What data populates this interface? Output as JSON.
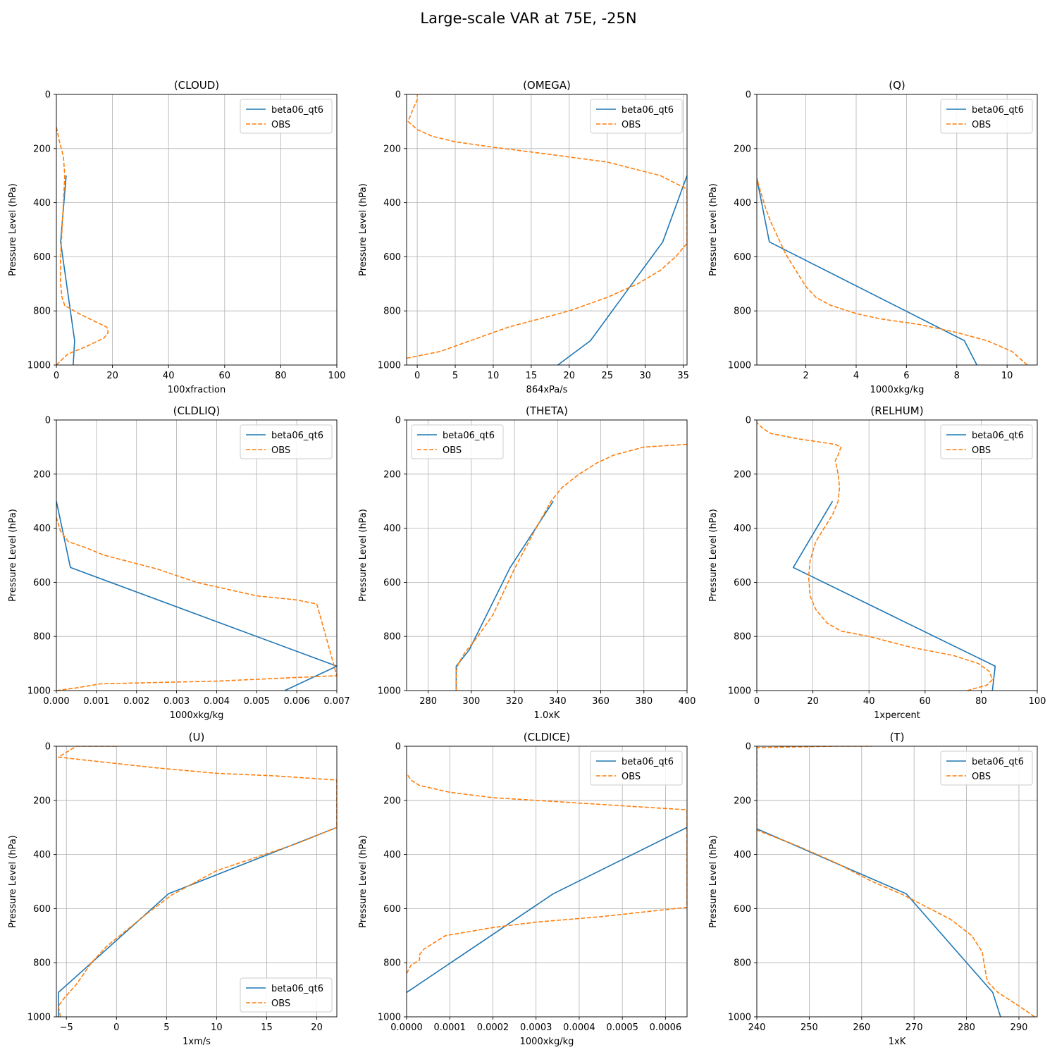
{
  "figure": {
    "title": "Large-scale VAR at 75E, -25N"
  },
  "colors": {
    "model": "#1f77b4",
    "obs": "#ff7f0e",
    "grid": "#b0b0b0"
  },
  "chart_data": [
    {
      "type": "line",
      "title": "(CLOUD)",
      "xlabel": "100xfraction",
      "ylabel": "Pressure Level (hPa)",
      "xlim": [
        0,
        100
      ],
      "ylim": [
        1000,
        0
      ],
      "xticks": [
        0,
        20,
        40,
        60,
        80,
        100
      ],
      "xticklabels": [
        "0",
        "20",
        "40",
        "60",
        "80",
        "100"
      ],
      "yticks": [
        0,
        200,
        400,
        600,
        800,
        1000
      ],
      "yticklabels": [
        "0",
        "200",
        "400",
        "600",
        "800",
        "1000"
      ],
      "grid": true,
      "legend": "upper right",
      "series": [
        {
          "name": "beta06_qt6",
          "style": "solid",
          "x": [
            6,
            6.5,
            1.5,
            3.5
          ],
          "y": [
            1000,
            910,
            545,
            300
          ]
        },
        {
          "name": "OBS",
          "style": "dashed",
          "x": [
            0,
            4,
            11,
            17,
            18.5,
            18,
            14,
            8,
            3,
            2,
            1.5,
            1.5,
            2,
            2.5,
            3,
            2.5,
            1,
            0
          ],
          "y": [
            1000,
            960,
            930,
            900,
            880,
            860,
            840,
            810,
            780,
            750,
            700,
            600,
            500,
            400,
            300,
            230,
            170,
            120
          ]
        }
      ]
    },
    {
      "type": "line",
      "title": "(OMEGA)",
      "xlabel": "864xPa/s",
      "ylabel": "Pressure Level (hPa)",
      "xlim": [
        -1.4,
        35.5
      ],
      "ylim": [
        1000,
        0
      ],
      "xticks": [
        0,
        5,
        10,
        15,
        20,
        25,
        30,
        35
      ],
      "xticklabels": [
        "0",
        "5",
        "10",
        "15",
        "20",
        "25",
        "30",
        "35"
      ],
      "yticks": [
        0,
        200,
        400,
        600,
        800,
        1000
      ],
      "yticklabels": [
        "0",
        "200",
        "400",
        "600",
        "800",
        "1000"
      ],
      "grid": true,
      "legend": "upper right",
      "series": [
        {
          "name": "beta06_qt6",
          "style": "solid",
          "x": [
            18.5,
            22.8,
            32.3,
            35.5
          ],
          "y": [
            1000,
            910,
            545,
            300
          ]
        },
        {
          "name": "OBS",
          "style": "dashed",
          "x": [
            -1.4,
            3,
            8,
            12,
            16,
            20,
            25,
            29,
            32,
            34,
            35.5,
            35.5,
            35.5,
            32,
            25,
            17,
            10,
            5,
            2,
            0,
            -1.2,
            -0.5,
            0,
            0
          ],
          "y": [
            975,
            950,
            900,
            860,
            830,
            800,
            750,
            700,
            650,
            600,
            550,
            450,
            350,
            300,
            250,
            220,
            195,
            175,
            155,
            130,
            100,
            50,
            20,
            0
          ]
        }
      ]
    },
    {
      "type": "line",
      "title": "(Q)",
      "xlabel": "1000xkg/kg",
      "ylabel": "Pressure Level (hPa)",
      "xlim": [
        0.05,
        11.2
      ],
      "ylim": [
        1000,
        0
      ],
      "xticks": [
        2,
        4,
        6,
        8,
        10
      ],
      "xticklabels": [
        "2",
        "4",
        "6",
        "8",
        "10"
      ],
      "yticks": [
        0,
        200,
        400,
        600,
        800,
        1000
      ],
      "yticklabels": [
        "0",
        "200",
        "400",
        "600",
        "800",
        "1000"
      ],
      "grid": true,
      "legend": "upper right",
      "series": [
        {
          "name": "beta06_qt6",
          "style": "solid",
          "x": [
            8.8,
            8.3,
            0.55,
            0.05
          ],
          "y": [
            1000,
            910,
            545,
            310
          ]
        },
        {
          "name": "OBS",
          "style": "dashed",
          "x": [
            10.8,
            10.2,
            9.2,
            8,
            6.5,
            5,
            4,
            3,
            2.4,
            2,
            1.6,
            1.2,
            0.9,
            0.6,
            0.4,
            0.2,
            0.05
          ],
          "y": [
            1000,
            950,
            910,
            880,
            850,
            830,
            810,
            780,
            750,
            710,
            650,
            590,
            530,
            470,
            420,
            360,
            310
          ]
        }
      ]
    },
    {
      "type": "line",
      "title": "(CLDLIQ)",
      "xlabel": "1000xkg/kg",
      "ylabel": "Pressure Level (hPa)",
      "xlim": [
        0,
        0.007
      ],
      "ylim": [
        1000,
        0
      ],
      "xticks": [
        0,
        0.001,
        0.002,
        0.003,
        0.004,
        0.005,
        0.006,
        0.007
      ],
      "xticklabels": [
        "0.000",
        "0.001",
        "0.002",
        "0.003",
        "0.004",
        "0.005",
        "0.006",
        "0.007"
      ],
      "yticks": [
        0,
        200,
        400,
        600,
        800,
        1000
      ],
      "yticklabels": [
        "0",
        "200",
        "400",
        "600",
        "800",
        "1000"
      ],
      "grid": true,
      "legend": "upper right",
      "series": [
        {
          "name": "beta06_qt6",
          "style": "solid",
          "x": [
            0.0057,
            0.007,
            0.00035,
            0
          ],
          "y": [
            1000,
            910,
            545,
            300
          ]
        },
        {
          "name": "OBS",
          "style": "dashed",
          "x": [
            0,
            0.0005,
            0.0011,
            0.004,
            0.0055,
            0.007,
            0.0065,
            0.006,
            0.005,
            0.0035,
            0.0025,
            0.0012,
            0.0007,
            0.0003,
            0.0001,
            0
          ],
          "y": [
            1000,
            990,
            975,
            965,
            955,
            945,
            680,
            665,
            650,
            600,
            550,
            500,
            470,
            450,
            410,
            360
          ]
        }
      ]
    },
    {
      "type": "line",
      "title": "(THETA)",
      "xlabel": "1.0xK",
      "ylabel": "Pressure Level (hPa)",
      "xlim": [
        270,
        400
      ],
      "ylim": [
        1000,
        0
      ],
      "xticks": [
        280,
        300,
        320,
        340,
        360,
        380,
        400
      ],
      "xticklabels": [
        "280",
        "300",
        "320",
        "340",
        "360",
        "380",
        "400"
      ],
      "yticks": [
        0,
        200,
        400,
        600,
        800,
        1000
      ],
      "yticklabels": [
        "0",
        "200",
        "400",
        "600",
        "800",
        "1000"
      ],
      "grid": true,
      "legend": "upper left",
      "series": [
        {
          "name": "beta06_qt6",
          "style": "solid",
          "x": [
            293,
            293,
            299,
            318,
            338
          ],
          "y": [
            1000,
            910,
            850,
            545,
            300
          ]
        },
        {
          "name": "OBS",
          "style": "dashed",
          "x": [
            293,
            293,
            294,
            297,
            303,
            310,
            320,
            330,
            337,
            342,
            350,
            358,
            366,
            380,
            400
          ],
          "y": [
            1000,
            930,
            900,
            860,
            800,
            720,
            550,
            400,
            300,
            250,
            200,
            160,
            130,
            100,
            90
          ]
        }
      ]
    },
    {
      "type": "line",
      "title": "(RELHUM)",
      "xlabel": "1xpercent",
      "ylabel": "Pressure Level (hPa)",
      "xlim": [
        0,
        100
      ],
      "ylim": [
        1000,
        0
      ],
      "xticks": [
        0,
        20,
        40,
        60,
        80,
        100
      ],
      "xticklabels": [
        "0",
        "20",
        "40",
        "60",
        "80",
        "100"
      ],
      "yticks": [
        0,
        200,
        400,
        600,
        800,
        1000
      ],
      "yticklabels": [
        "0",
        "200",
        "400",
        "600",
        "800",
        "1000"
      ],
      "grid": true,
      "legend": "upper right",
      "series": [
        {
          "name": "beta06_qt6",
          "style": "solid",
          "x": [
            84,
            85,
            13,
            27
          ],
          "y": [
            1000,
            910,
            545,
            300
          ]
        },
        {
          "name": "OBS",
          "style": "dashed",
          "x": [
            75,
            82,
            84,
            83,
            79,
            70,
            55,
            40,
            30,
            25,
            21,
            19,
            18.5,
            19,
            21,
            24,
            27,
            29,
            29.5,
            29,
            28,
            29,
            30,
            28,
            15,
            5,
            2,
            0
          ],
          "y": [
            1000,
            980,
            960,
            930,
            900,
            870,
            840,
            800,
            780,
            750,
            700,
            650,
            580,
            520,
            450,
            400,
            350,
            300,
            250,
            200,
            150,
            130,
            100,
            90,
            70,
            50,
            30,
            10
          ]
        }
      ]
    },
    {
      "type": "line",
      "title": "(U)",
      "xlabel": "1xm/s",
      "ylabel": "Pressure Level (hPa)",
      "xlim": [
        -6,
        22
      ],
      "ylim": [
        1000,
        0
      ],
      "xticks": [
        -5,
        0,
        5,
        10,
        15,
        20
      ],
      "xticklabels": [
        "−5",
        "0",
        "5",
        "10",
        "15",
        "20"
      ],
      "yticks": [
        0,
        200,
        400,
        600,
        800,
        1000
      ],
      "yticklabels": [
        "0",
        "200",
        "400",
        "600",
        "800",
        "1000"
      ],
      "grid": true,
      "legend": "lower right",
      "series": [
        {
          "name": "beta06_qt6",
          "style": "solid",
          "x": [
            -5.8,
            -5.8,
            5.2,
            22
          ],
          "y": [
            1000,
            910,
            545,
            300
          ]
        },
        {
          "name": "OBS",
          "style": "dashed",
          "x": [
            -5.6,
            -5.8,
            -5.2,
            -4,
            -2.5,
            -1,
            1,
            3,
            5.5,
            8,
            10,
            14,
            18,
            22,
            22,
            16,
            10,
            4,
            -1,
            -5.8,
            -4,
            0
          ],
          "y": [
            1000,
            960,
            930,
            880,
            800,
            740,
            680,
            620,
            550,
            500,
            460,
            410,
            360,
            300,
            125,
            110,
            100,
            80,
            60,
            40,
            0,
            0
          ]
        }
      ]
    },
    {
      "type": "line",
      "title": "(CLDICE)",
      "xlabel": "1000xkg/kg",
      "ylabel": "Pressure Level (hPa)",
      "xlim": [
        0,
        0.00065
      ],
      "ylim": [
        1000,
        0
      ],
      "xticks": [
        0,
        0.0001,
        0.0002,
        0.0003,
        0.0004,
        0.0005,
        0.0006
      ],
      "xticklabels": [
        "0.0000",
        "0.0001",
        "0.0002",
        "0.0003",
        "0.0004",
        "0.0005",
        "0.0006"
      ],
      "yticks": [
        0,
        200,
        400,
        600,
        800,
        1000
      ],
      "yticklabels": [
        "0",
        "200",
        "400",
        "600",
        "800",
        "1000"
      ],
      "grid": true,
      "legend": "upper right",
      "series": [
        {
          "name": "beta06_qt6",
          "style": "solid",
          "x": [
            0,
            0.00034,
            0.00065
          ],
          "y": [
            910,
            545,
            300
          ]
        },
        {
          "name": "OBS",
          "style": "dashed",
          "x": [
            0,
            1e-05,
            3e-05,
            3e-05,
            4e-05,
            9e-05,
            0.0002,
            0.0003,
            0.00045,
            0.00065,
            0.00065,
            0.0005,
            0.00035,
            0.0002,
            0.0001,
            3e-05,
            1e-05,
            0
          ],
          "y": [
            840,
            810,
            790,
            770,
            750,
            700,
            670,
            650,
            630,
            595,
            235,
            220,
            205,
            190,
            170,
            145,
            125,
            100
          ]
        }
      ]
    },
    {
      "type": "line",
      "title": "(T)",
      "xlabel": "1xK",
      "ylabel": "Pressure Level (hPa)",
      "xlim": [
        240,
        293.5
      ],
      "ylim": [
        1000,
        0
      ],
      "xticks": [
        240,
        250,
        260,
        270,
        280,
        290
      ],
      "xticklabels": [
        "240",
        "250",
        "260",
        "270",
        "280",
        "290"
      ],
      "yticks": [
        0,
        200,
        400,
        600,
        800,
        1000
      ],
      "yticklabels": [
        "0",
        "200",
        "400",
        "600",
        "800",
        "1000"
      ],
      "grid": true,
      "legend": "upper right",
      "series": [
        {
          "name": "beta06_qt6",
          "style": "solid",
          "x": [
            286.5,
            285,
            268.5,
            240
          ],
          "y": [
            1000,
            910,
            545,
            305
          ]
        },
        {
          "name": "OBS",
          "style": "dashed",
          "x": [
            293,
            290,
            286,
            284,
            283.5,
            283,
            281,
            277,
            272,
            268,
            262,
            255,
            248,
            240,
            240,
            240,
            255,
            262
          ],
          "y": [
            1000,
            960,
            910,
            870,
            820,
            760,
            700,
            640,
            590,
            550,
            500,
            430,
            370,
            310,
            200,
            5,
            0,
            0
          ]
        }
      ]
    }
  ]
}
